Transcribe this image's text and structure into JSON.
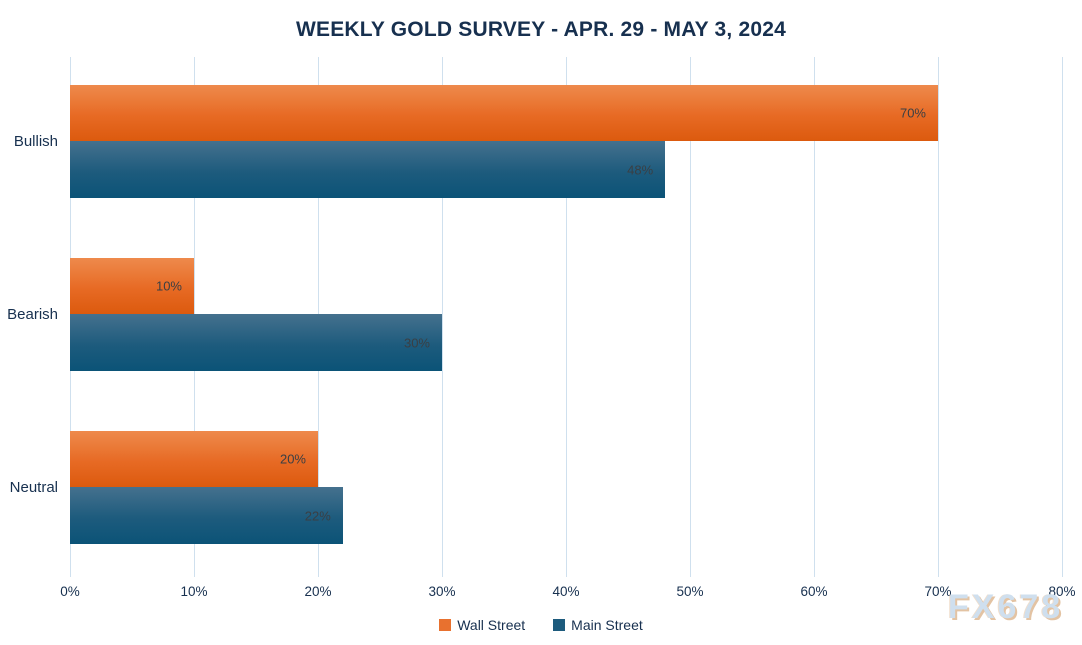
{
  "title": "WEEKLY GOLD SURVEY - APR. 29 - MAY 3, 2024",
  "watermark": "FX678",
  "colors": {
    "title_text": "#17304f",
    "axis_text": "#17304f",
    "value_label_text": "#3a3f44",
    "gridline": "#cfe0ee",
    "wall_street_orange": "#e8712f",
    "wall_street_gradient_top": "#ee8a4c",
    "wall_street_gradient_bottom": "#dc5a0e",
    "main_street_blue": "#1d5b7d",
    "main_street_gradient_top": "#45718e",
    "main_street_gradient_bottom": "#0b5377",
    "watermark_fill": "#cfdfee",
    "watermark_shadow": "#e3c3a3"
  },
  "chart_data": {
    "type": "bar",
    "orientation": "horizontal",
    "title": "WEEKLY GOLD SURVEY - APR. 29 - MAY 3, 2024",
    "categories": [
      "Bullish",
      "Bearish",
      "Neutral"
    ],
    "series": [
      {
        "name": "Wall Street",
        "values": [
          70,
          10,
          20
        ],
        "labels": [
          "70%",
          "10%",
          "20%"
        ]
      },
      {
        "name": "Main Street",
        "values": [
          48,
          30,
          22
        ],
        "labels": [
          "48%",
          "30%",
          "22%"
        ]
      }
    ],
    "xlabel": "",
    "ylabel": "",
    "xlim": [
      0,
      80
    ],
    "x_ticks": [
      "0%",
      "10%",
      "20%",
      "30%",
      "40%",
      "50%",
      "60%",
      "70%",
      "80%"
    ],
    "grid": true,
    "legend_position": "bottom",
    "value_labels_inside_bars": true,
    "watermark": "FX678"
  }
}
